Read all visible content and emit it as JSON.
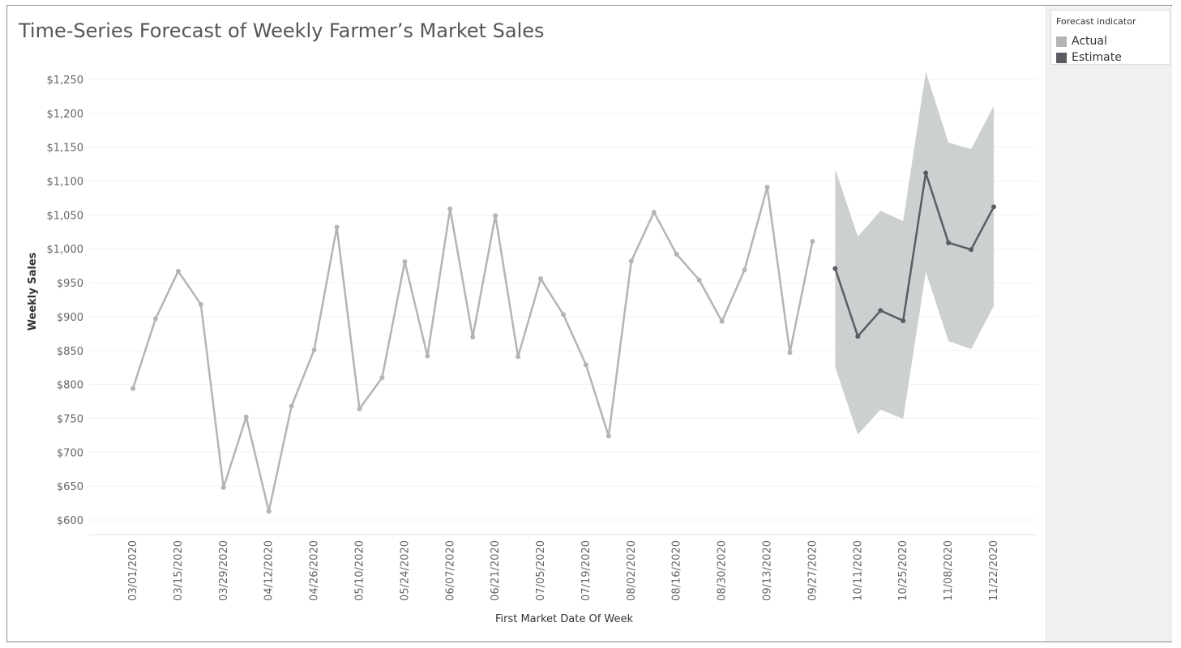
{
  "title": "Time-Series Forecast of Weekly Farmer’s Market Sales",
  "legend": {
    "title": "Forecast indicator",
    "items": [
      {
        "label": "Actual",
        "color": "#b4b4b4"
      },
      {
        "label": "Estimate",
        "color": "#5a5c62"
      }
    ]
  },
  "chart_data": {
    "type": "line",
    "xlabel": "First Market Date Of Week",
    "ylabel": "Weekly Sales",
    "ylim": [
      580,
      1280
    ],
    "yticks": [
      600,
      650,
      700,
      750,
      800,
      850,
      900,
      950,
      1000,
      1050,
      1100,
      1150,
      1200,
      1250
    ],
    "ytick_labels": [
      "$600",
      "$650",
      "$700",
      "$750",
      "$800",
      "$850",
      "$900",
      "$950",
      "$1,000",
      "$1,050",
      "$1,100",
      "$1,150",
      "$1,200",
      "$1,250"
    ],
    "xtick_labels": [
      "03/01/2020",
      "03/15/2020",
      "03/29/2020",
      "04/12/2020",
      "04/26/2020",
      "05/10/2020",
      "05/24/2020",
      "06/07/2020",
      "06/21/2020",
      "07/05/2020",
      "07/19/2020",
      "08/02/2020",
      "08/16/2020",
      "08/30/2020",
      "09/13/2020",
      "09/27/2020",
      "10/11/2020",
      "10/25/2020",
      "11/08/2020",
      "11/22/2020"
    ],
    "grid": true,
    "weeks": [
      "03/01/2020",
      "03/08/2020",
      "03/15/2020",
      "03/22/2020",
      "03/29/2020",
      "04/05/2020",
      "04/12/2020",
      "04/19/2020",
      "04/26/2020",
      "05/03/2020",
      "05/10/2020",
      "05/17/2020",
      "05/24/2020",
      "05/31/2020",
      "06/07/2020",
      "06/14/2020",
      "06/21/2020",
      "06/28/2020",
      "07/05/2020",
      "07/12/2020",
      "07/19/2020",
      "07/26/2020",
      "08/02/2020",
      "08/09/2020",
      "08/16/2020",
      "08/23/2020",
      "08/30/2020",
      "09/06/2020",
      "09/13/2020",
      "09/20/2020",
      "09/27/2020",
      "10/04/2020",
      "10/11/2020",
      "10/18/2020",
      "10/25/2020",
      "11/01/2020",
      "11/08/2020",
      "11/15/2020",
      "11/22/2020"
    ],
    "series": [
      {
        "name": "Actual",
        "color": "#b4b4b4",
        "values": [
          794,
          897,
          967,
          918,
          648,
          752,
          613,
          768,
          851,
          1032,
          764,
          810,
          981,
          842,
          1059,
          870,
          1049,
          841,
          956,
          903,
          829,
          724,
          982,
          1054,
          992,
          954,
          893,
          969,
          1091,
          847,
          1011,
          null,
          null,
          null,
          null,
          null,
          null,
          null,
          null
        ]
      },
      {
        "name": "Estimate",
        "color": "#5a5c62",
        "values": [
          null,
          null,
          null,
          null,
          null,
          null,
          null,
          null,
          null,
          null,
          null,
          null,
          null,
          null,
          null,
          null,
          null,
          null,
          null,
          null,
          null,
          null,
          null,
          null,
          null,
          null,
          null,
          null,
          null,
          null,
          null,
          971,
          871,
          909,
          894,
          1112,
          1009,
          999,
          1062
        ]
      }
    ],
    "prediction_band": {
      "color": "#cdd0d0",
      "lower": [
        null,
        null,
        null,
        null,
        null,
        null,
        null,
        null,
        null,
        null,
        null,
        null,
        null,
        null,
        null,
        null,
        null,
        null,
        null,
        null,
        null,
        null,
        null,
        null,
        null,
        null,
        null,
        null,
        null,
        null,
        null,
        826,
        726,
        763,
        749,
        966,
        864,
        852,
        916
      ],
      "upper": [
        null,
        null,
        null,
        null,
        null,
        null,
        null,
        null,
        null,
        null,
        null,
        null,
        null,
        null,
        null,
        null,
        null,
        null,
        null,
        null,
        null,
        null,
        null,
        null,
        null,
        null,
        null,
        null,
        null,
        null,
        null,
        1118,
        1018,
        1056,
        1041,
        1261,
        1157,
        1147,
        1211
      ]
    }
  }
}
